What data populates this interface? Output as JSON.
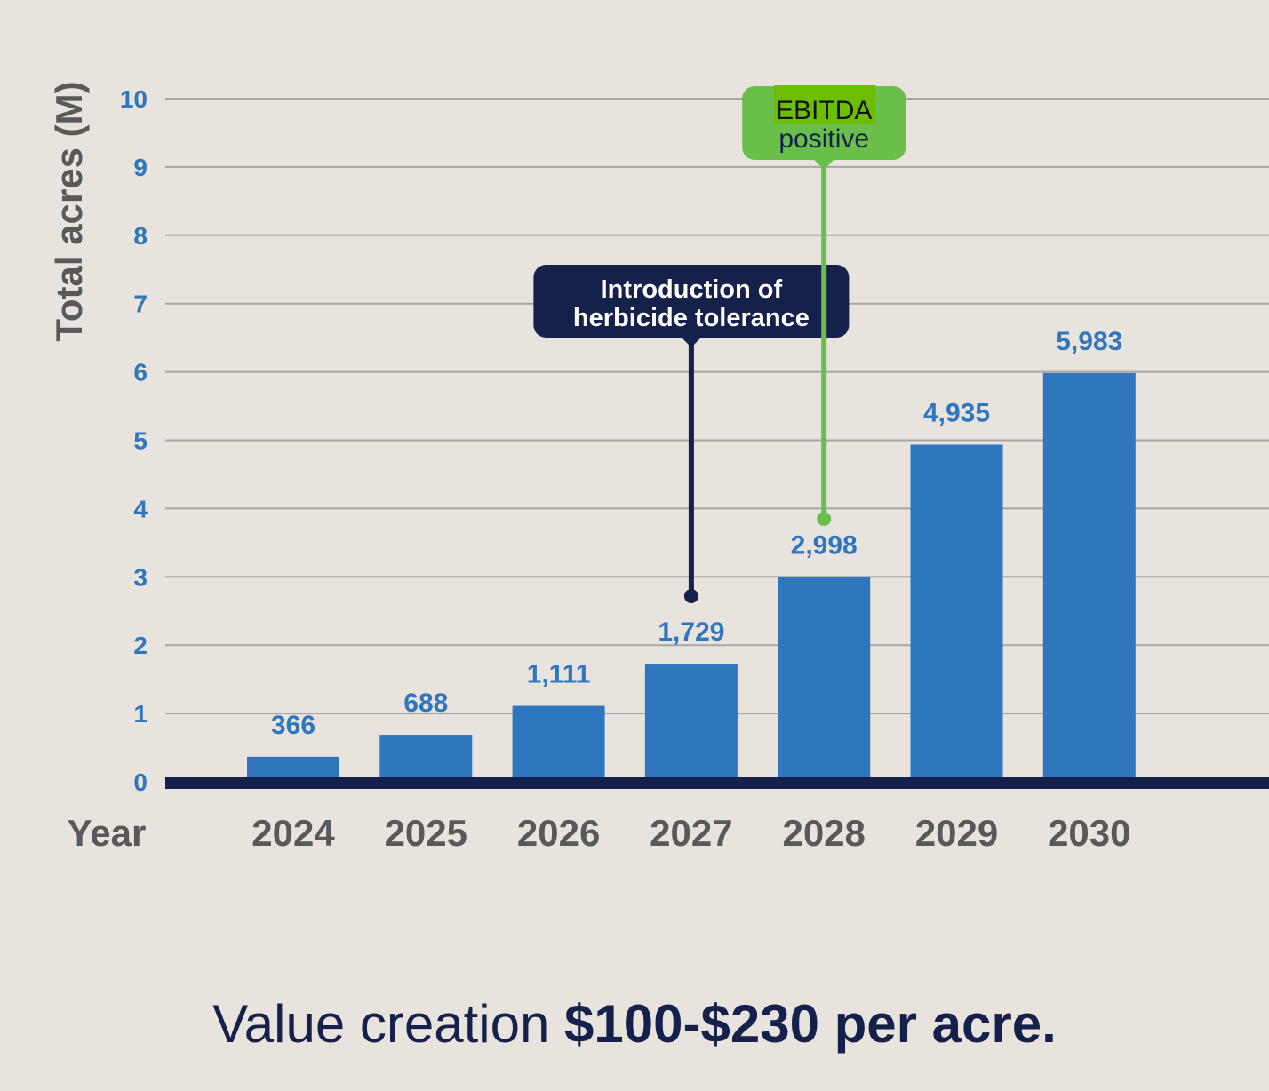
{
  "chart_data": {
    "type": "bar",
    "ylabel": "Total acres (M)",
    "xlabel": "Year",
    "ylim": [
      0,
      10
    ],
    "yticks": [
      0,
      1,
      2,
      3,
      4,
      5,
      6,
      7,
      8,
      9,
      10
    ],
    "grid": true,
    "categories": [
      "2024",
      "2025",
      "2026",
      "2027",
      "2028",
      "2029",
      "2030"
    ],
    "values": [
      0.366,
      0.688,
      1.111,
      1.729,
      2.998,
      4.935,
      5.983
    ],
    "data_labels": [
      "366",
      "688",
      "1,111",
      "1,729",
      "2,998",
      "4,935",
      "5,983"
    ],
    "annotations": [
      {
        "lines": [
          "Introduction of",
          "herbicide tolerance"
        ],
        "year": "2027",
        "color": "#14214a",
        "text_color": "#ffffff"
      },
      {
        "lines": [
          "EBITDA",
          "positive"
        ],
        "year": "2028",
        "color": "#6abf4b",
        "text_color": "#14214a",
        "highlight": "#6dbe00"
      }
    ]
  },
  "colors": {
    "bar": "#2e77bf",
    "tick": "#2e77bf",
    "axis_label": "#58595b",
    "baseline": "#14214a",
    "grid": "#a7a6a4",
    "background": "#e8e3dd"
  },
  "footer": {
    "normal": "Value creation ",
    "bold": "$100-$230 per acre."
  }
}
